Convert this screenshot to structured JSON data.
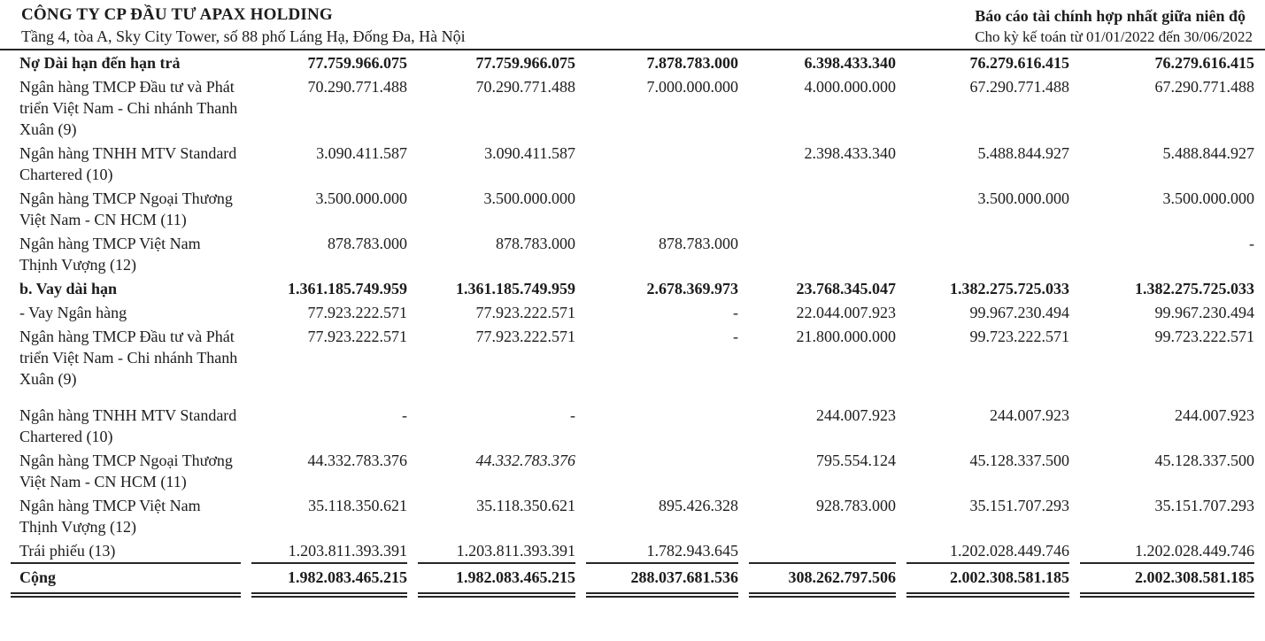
{
  "header": {
    "company": "CÔNG TY CP ĐẦU TƯ APAX HOLDING",
    "address": "Tầng 4, tòa A, Sky City Tower, số 88 phố Láng Hạ, Đống Đa, Hà Nội",
    "report_title": "Báo cáo tài chính hợp nhất giữa niên độ",
    "report_period": "Cho kỳ kế toán từ 01/01/2022 đến 30/06/2022"
  },
  "colors": {
    "text": "#1c1c1c",
    "rule": "#262626",
    "background": "#ffffff"
  },
  "table": {
    "rows": [
      {
        "label": "Nợ Dài hạn đến hạn trả",
        "bold": true,
        "values": [
          "77.759.966.075",
          "77.759.966.075",
          "7.878.783.000",
          "6.398.433.340",
          "76.279.616.415",
          "76.279.616.415"
        ]
      },
      {
        "label": "Ngân hàng TMCP Đầu tư và Phát triển Việt Nam - Chi nhánh Thanh Xuân (9)",
        "values": [
          "70.290.771.488",
          "70.290.771.488",
          "7.000.000.000",
          "4.000.000.000",
          "67.290.771.488",
          "67.290.771.488"
        ]
      },
      {
        "label": "Ngân hàng TNHH MTV Standard Chartered (10)",
        "values": [
          "3.090.411.587",
          "3.090.411.587",
          "",
          "2.398.433.340",
          "5.488.844.927",
          "5.488.844.927"
        ]
      },
      {
        "label": "Ngân hàng TMCP Ngoại Thương Việt Nam - CN HCM (11)",
        "values": [
          "3.500.000.000",
          "3.500.000.000",
          "",
          "",
          "3.500.000.000",
          "3.500.000.000"
        ]
      },
      {
        "label": "Ngân hàng TMCP Việt Nam Thịnh Vượng (12)",
        "values": [
          "878.783.000",
          "878.783.000",
          "878.783.000",
          "",
          "",
          "-"
        ]
      },
      {
        "label": "b. Vay dài hạn",
        "bold": true,
        "values": [
          "1.361.185.749.959",
          "1.361.185.749.959",
          "2.678.369.973",
          "23.768.345.047",
          "1.382.275.725.033",
          "1.382.275.725.033"
        ]
      },
      {
        "label": "- Vay Ngân hàng",
        "values": [
          "77.923.222.571",
          "77.923.222.571",
          "-",
          "22.044.007.923",
          "99.967.230.494",
          "99.967.230.494"
        ]
      },
      {
        "label": "Ngân hàng TMCP Đầu tư và Phát triển Việt Nam - Chi nhánh Thanh Xuân (9)",
        "gap_below": true,
        "values": [
          "77.923.222.571",
          "77.923.222.571",
          "-",
          "21.800.000.000",
          "99.723.222.571",
          "99.723.222.571"
        ]
      },
      {
        "label": "Ngân hàng TNHH MTV Standard Chartered (10)",
        "values": [
          "-",
          "-",
          "",
          "244.007.923",
          "244.007.923",
          "244.007.923"
        ]
      },
      {
        "label": "Ngân hàng TMCP Ngoại Thương Việt Nam - CN HCM (11)",
        "italic": [
          1
        ],
        "values": [
          "44.332.783.376",
          "44.332.783.376",
          "",
          "795.554.124",
          "45.128.337.500",
          "45.128.337.500"
        ]
      },
      {
        "label": "Ngân hàng TMCP Việt Nam Thịnh Vượng (12)",
        "values": [
          "35.118.350.621",
          "35.118.350.621",
          "895.426.328",
          "928.783.000",
          "35.151.707.293",
          "35.151.707.293"
        ]
      },
      {
        "label": "Trái phiếu (13)",
        "rule_below": true,
        "values": [
          "1.203.811.393.391",
          "1.203.811.393.391",
          "1.782.943.645",
          "",
          "1.202.028.449.746",
          "1.202.028.449.746"
        ]
      },
      {
        "label": "Cộng",
        "total": true,
        "values": [
          "1.982.083.465.215",
          "1.982.083.465.215",
          "288.037.681.536",
          "308.262.797.506",
          "2.002.308.581.185",
          "2.002.308.581.185"
        ]
      }
    ]
  }
}
